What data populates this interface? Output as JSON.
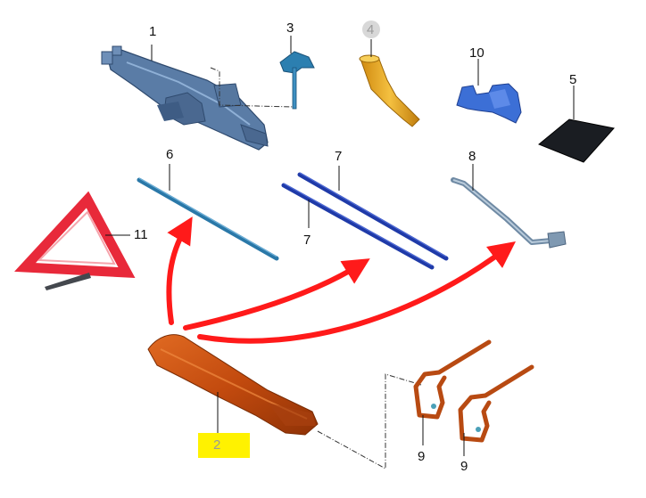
{
  "diagram": {
    "callouts": {
      "jack": "1",
      "chock": "2",
      "tbar": "3",
      "funnel": "4",
      "mat": "5",
      "rod6": "6",
      "rod7a": "7",
      "rod7b": "7",
      "wrench": "8",
      "hook_a": "9",
      "hook_b": "9",
      "bracket": "10",
      "triangle": "11"
    },
    "colors": {
      "jack": "#4a6d96",
      "tbar": "#2c7fb0",
      "funnel": "#e8a91c",
      "bracket": "#3c6fd6",
      "mat": "#1a1d22",
      "rod6": "#2a78a8",
      "rods7": "#1f3aa8",
      "wrench": "#8da3b8",
      "triangle": "#e8293a",
      "chock": "#c84a10",
      "hooks": "#b84a12",
      "arrows": "#ff1a1a",
      "highlight": "#fff200"
    }
  }
}
